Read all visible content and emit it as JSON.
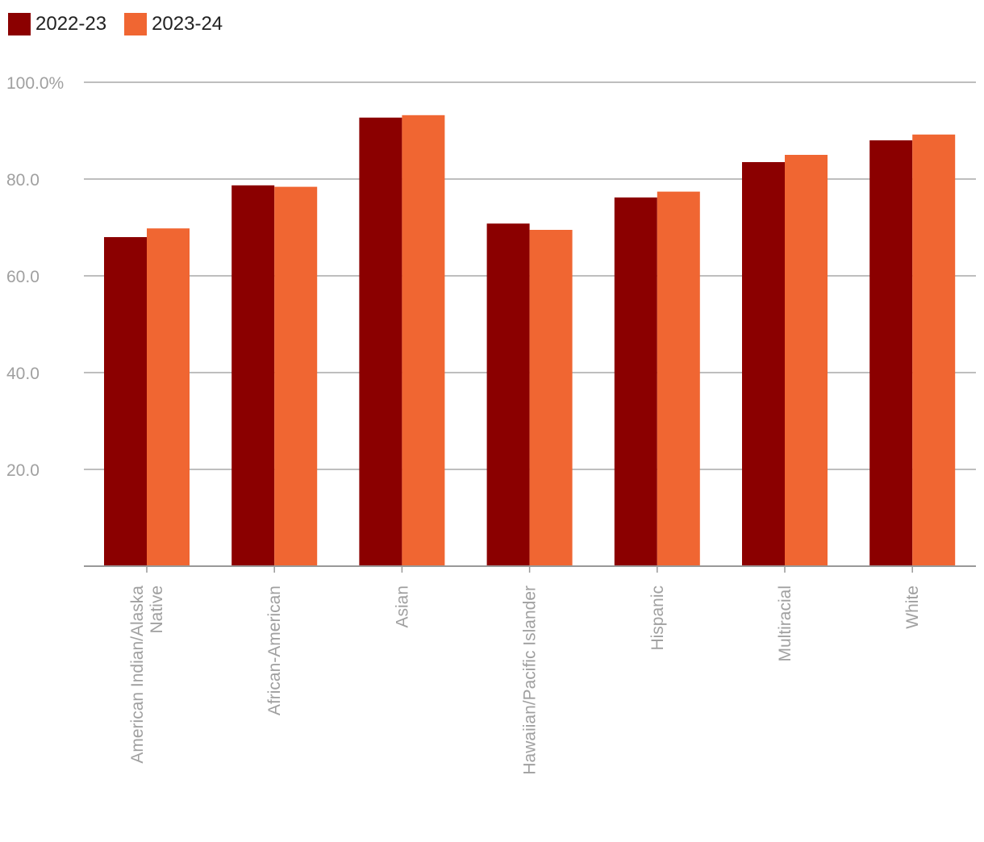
{
  "chart_data": {
    "type": "bar",
    "categories": [
      "American Indian/Alaska Native",
      "African-American",
      "Asian",
      "Hawaiian/Pacific Islander",
      "Hispanic",
      "Multiracial",
      "White"
    ],
    "category_lines": [
      [
        "American Indian/Alaska",
        "Native"
      ],
      [
        "African-American"
      ],
      [
        "Asian"
      ],
      [
        "Hawaiian/Pacific Islander"
      ],
      [
        "Hispanic"
      ],
      [
        "Multiracial"
      ],
      [
        "White"
      ]
    ],
    "series": [
      {
        "name": "2022-23",
        "color": "#8b0000",
        "values": [
          68.0,
          78.7,
          92.7,
          70.8,
          76.2,
          83.5,
          88.0
        ]
      },
      {
        "name": "2023-24",
        "color": "#f06632",
        "values": [
          69.8,
          78.4,
          93.2,
          69.5,
          77.4,
          85.0,
          89.2
        ]
      }
    ],
    "ylim": [
      0,
      100
    ],
    "yticks": [
      20,
      40,
      60,
      80,
      100
    ],
    "ytick_labels": [
      "20.0",
      "40.0",
      "60.0",
      "80.0",
      "100.0%"
    ],
    "grid": true,
    "legend_position": "top-left",
    "title": "",
    "xlabel": "",
    "ylabel": ""
  }
}
